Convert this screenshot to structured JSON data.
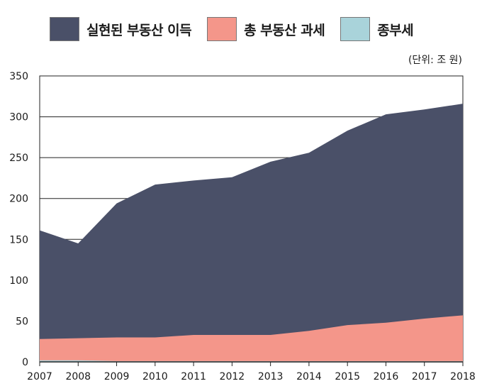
{
  "unit_label": "(단위: 조 원)",
  "legend": [
    {
      "label": "실현된 부동산 이득",
      "color": "#4a5068"
    },
    {
      "label": "총 부동산 과세",
      "color": "#f4968a"
    },
    {
      "label": "종부세",
      "color": "#a9d3da"
    }
  ],
  "chart_data": {
    "type": "area",
    "x": [
      "2007",
      "2008",
      "2009",
      "2010",
      "2011",
      "2012",
      "2013",
      "2014",
      "2015",
      "2016",
      "2017",
      "2018"
    ],
    "stacking": "overlapping",
    "series": [
      {
        "name": "실현된 부동산 이득",
        "color": "#4a5068",
        "values": [
          161,
          145,
          194,
          217,
          222,
          226,
          245,
          256,
          283,
          303,
          309,
          316
        ]
      },
      {
        "name": "총 부동산 과세",
        "color": "#f4968a",
        "values": [
          28,
          29,
          30,
          30,
          33,
          33,
          33,
          38,
          45,
          48,
          53,
          57
        ]
      },
      {
        "name": "종부세",
        "color": "#a9d3da",
        "values": [
          2,
          2,
          1,
          1,
          1,
          1,
          1,
          1,
          1,
          1,
          1,
          1
        ]
      }
    ],
    "ylim": [
      0,
      350
    ],
    "yticks": [
      0,
      50,
      100,
      150,
      200,
      250,
      300,
      350
    ],
    "grid": "horizontal",
    "legend_position": "top"
  }
}
